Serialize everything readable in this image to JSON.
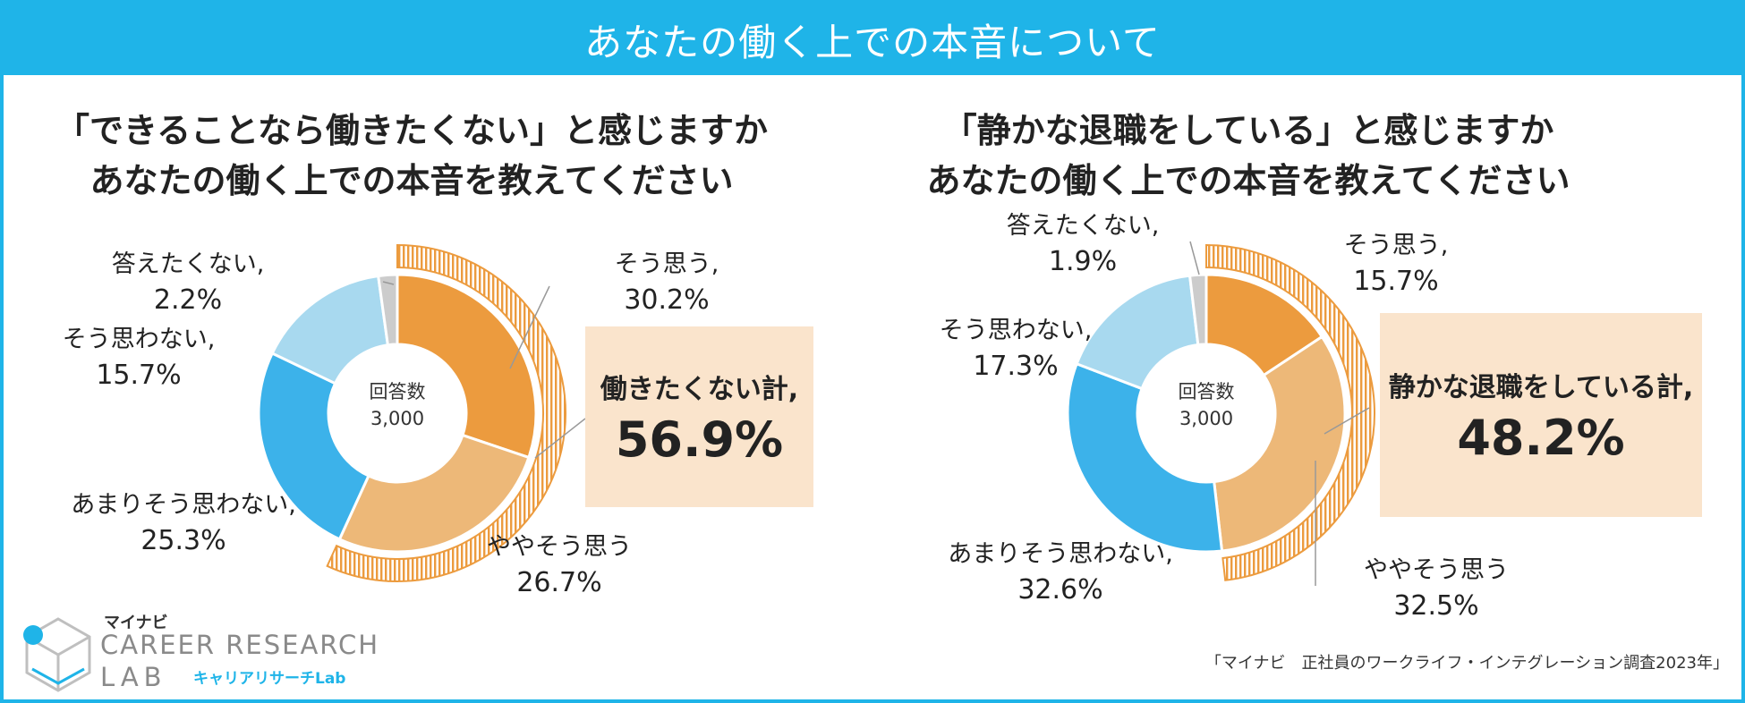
{
  "header": {
    "title": "あなたの働く上での本音について"
  },
  "colors": {
    "accent": "#1fb4e8",
    "so_omou": "#ec9b3e",
    "yaya": "#edb878",
    "amari": "#3cb2ea",
    "omowanai": "#a8d9ef",
    "kotaetakunai": "#cccccc",
    "total_box": "#fae4cc"
  },
  "chart_data": [
    {
      "type": "pie",
      "variant": "donut",
      "title_lines": [
        "「できることなら働きたくない」と感じますか",
        "あなたの働く上での本音を教えてください"
      ],
      "center_label": "回答数",
      "center_value": "3,000",
      "slices": [
        {
          "label": "そう思う,",
          "value": 30.2,
          "display": "30.2%"
        },
        {
          "label": "ややそう思う",
          "value": 26.7,
          "display": "26.7%"
        },
        {
          "label": "あまりそう思わない,",
          "value": 25.3,
          "display": "25.3%"
        },
        {
          "label": "そう思わない,",
          "value": 15.7,
          "display": "15.7%"
        },
        {
          "label": "答えたくない,",
          "value": 2.2,
          "display": "2.2%"
        }
      ],
      "total": {
        "label": "働きたくない計,",
        "value": 56.9,
        "display": "56.9%"
      }
    },
    {
      "type": "pie",
      "variant": "donut",
      "title_lines": [
        "「静かな退職をしている」と感じますか",
        "あなたの働く上での本音を教えてください"
      ],
      "center_label": "回答数",
      "center_value": "3,000",
      "slices": [
        {
          "label": "そう思う,",
          "value": 15.7,
          "display": "15.7%"
        },
        {
          "label": "ややそう思う",
          "value": 32.5,
          "display": "32.5%"
        },
        {
          "label": "あまりそう思わない,",
          "value": 32.6,
          "display": "32.6%"
        },
        {
          "label": "そう思わない,",
          "value": 17.3,
          "display": "17.3%"
        },
        {
          "label": "答えたくない,",
          "value": 1.9,
          "display": "1.9%"
        }
      ],
      "total": {
        "label": "静かな退職をしている計,",
        "value": 48.2,
        "display": "48.2%"
      }
    }
  ],
  "logo": {
    "brand": "マイナビ",
    "line1": "CAREER RESEARCH",
    "line2": "LAB",
    "jp": "キャリアリサーチLab"
  },
  "source": "「マイナビ　正社員のワークライフ・インテグレーション調査2023年」"
}
